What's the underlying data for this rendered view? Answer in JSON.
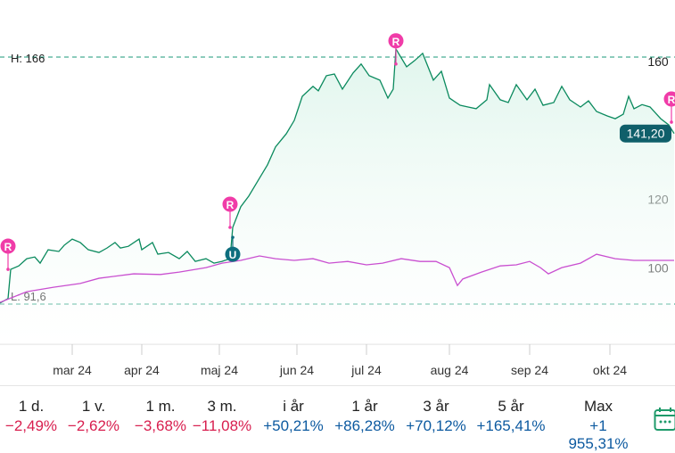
{
  "chart_data": {
    "type": "line",
    "ylim": [
      91.6,
      166
    ],
    "yticks": [
      100,
      120,
      160
    ],
    "high_label": "H: 166",
    "low_label": "L: 91,6",
    "high": 166,
    "low": 91.6,
    "last_value": 141.2,
    "last_label": "141,20",
    "xticks": [
      {
        "t": 27,
        "label": "mar 24"
      },
      {
        "t": 53,
        "label": "apr 24"
      },
      {
        "t": 82,
        "label": "maj 24"
      },
      {
        "t": 111,
        "label": "jun 24"
      },
      {
        "t": 137,
        "label": "jul 24"
      },
      {
        "t": 168,
        "label": "aug 24"
      },
      {
        "t": 198,
        "label": "sep 24"
      },
      {
        "t": 228,
        "label": "okt 24"
      }
    ],
    "series": [
      {
        "name": "price",
        "color": "#0b8a5e",
        "points": [
          [
            0,
            91.9
          ],
          [
            3,
            93.2
          ],
          [
            4,
            101.7
          ],
          [
            7,
            102.7
          ],
          [
            10,
            104.8
          ],
          [
            13,
            105.3
          ],
          [
            15,
            103.5
          ],
          [
            18,
            107.4
          ],
          [
            22,
            106.9
          ],
          [
            24,
            108.7
          ],
          [
            27,
            110.5
          ],
          [
            30,
            109.5
          ],
          [
            33,
            107.4
          ],
          [
            37,
            106.6
          ],
          [
            40,
            107.9
          ],
          [
            43,
            109.5
          ],
          [
            45,
            107.9
          ],
          [
            48,
            108.4
          ],
          [
            52,
            110.5
          ],
          [
            53,
            107.4
          ],
          [
            57,
            109.5
          ],
          [
            59,
            106.1
          ],
          [
            63,
            106.6
          ],
          [
            67,
            104.8
          ],
          [
            70,
            106.9
          ],
          [
            73,
            104.0
          ],
          [
            77,
            104.8
          ],
          [
            80,
            103.5
          ],
          [
            83,
            104.0
          ],
          [
            86,
            104.8
          ],
          [
            87,
            113.9
          ],
          [
            90,
            119.9
          ],
          [
            93,
            123.0
          ],
          [
            97,
            128.2
          ],
          [
            100,
            132.1
          ],
          [
            103,
            137.3
          ],
          [
            107,
            141.1
          ],
          [
            110,
            145.0
          ],
          [
            113,
            152.0
          ],
          [
            117,
            154.9
          ],
          [
            119,
            153.6
          ],
          [
            122,
            158.0
          ],
          [
            125,
            158.5
          ],
          [
            128,
            154.1
          ],
          [
            132,
            158.8
          ],
          [
            135,
            161.4
          ],
          [
            138,
            158.0
          ],
          [
            142,
            156.7
          ],
          [
            145,
            151.5
          ],
          [
            147,
            154.1
          ],
          [
            148,
            165.8
          ],
          [
            152,
            160.6
          ],
          [
            155,
            162.4
          ],
          [
            158,
            164.5
          ],
          [
            162,
            156.7
          ],
          [
            165,
            159.3
          ],
          [
            168,
            151.5
          ],
          [
            172,
            149.4
          ],
          [
            175,
            148.9
          ],
          [
            178,
            148.4
          ],
          [
            182,
            151.0
          ],
          [
            183,
            155.4
          ],
          [
            187,
            151.0
          ],
          [
            190,
            150.2
          ],
          [
            193,
            155.4
          ],
          [
            197,
            151.0
          ],
          [
            200,
            154.1
          ],
          [
            203,
            149.4
          ],
          [
            207,
            150.2
          ],
          [
            210,
            154.9
          ],
          [
            213,
            151.0
          ],
          [
            217,
            148.9
          ],
          [
            220,
            150.7
          ],
          [
            223,
            147.6
          ],
          [
            227,
            146.3
          ],
          [
            230,
            145.5
          ],
          [
            233,
            146.8
          ],
          [
            235,
            152.0
          ],
          [
            237,
            148.4
          ],
          [
            240,
            149.6
          ],
          [
            243,
            148.9
          ],
          [
            247,
            145.5
          ],
          [
            250,
            143.7
          ],
          [
            252,
            141.2
          ]
        ]
      },
      {
        "name": "index",
        "color": "#c94fd0",
        "points": [
          [
            0,
            92.1
          ],
          [
            10,
            95.2
          ],
          [
            20,
            96.5
          ],
          [
            30,
            97.6
          ],
          [
            37,
            99.1
          ],
          [
            50,
            100.4
          ],
          [
            60,
            100.2
          ],
          [
            67,
            100.9
          ],
          [
            77,
            102.2
          ],
          [
            83,
            103.5
          ],
          [
            90,
            104.3
          ],
          [
            97,
            105.6
          ],
          [
            103,
            104.8
          ],
          [
            110,
            104.3
          ],
          [
            117,
            104.8
          ],
          [
            123,
            103.5
          ],
          [
            130,
            104.0
          ],
          [
            137,
            103.0
          ],
          [
            143,
            103.5
          ],
          [
            150,
            104.8
          ],
          [
            157,
            104.0
          ],
          [
            163,
            104.0
          ],
          [
            168,
            102.2
          ],
          [
            171,
            97.0
          ],
          [
            173,
            98.9
          ],
          [
            180,
            100.9
          ],
          [
            187,
            102.7
          ],
          [
            193,
            103.0
          ],
          [
            198,
            104.0
          ],
          [
            202,
            102.2
          ],
          [
            205,
            100.4
          ],
          [
            210,
            102.2
          ],
          [
            217,
            103.5
          ],
          [
            223,
            106.1
          ],
          [
            230,
            104.8
          ],
          [
            237,
            104.3
          ],
          [
            243,
            104.3
          ],
          [
            252,
            104.3
          ]
        ]
      }
    ],
    "markers": [
      {
        "t": 3,
        "v": 101.7,
        "label": "R",
        "color": "#f03ca8"
      },
      {
        "t": 86,
        "v": 113.9,
        "label": "R",
        "color": "#f03ca8"
      },
      {
        "t": 87,
        "v": 111,
        "label": "U",
        "color": "#0e6e7e",
        "below": true
      },
      {
        "t": 148,
        "v": 161.4,
        "label": "R",
        "color": "#f03ca8"
      },
      {
        "t": 251,
        "v": 144.5,
        "label": "R",
        "color": "#f03ca8"
      }
    ]
  },
  "periods": [
    {
      "label": "1 d.",
      "value": "−2,49%",
      "dir": "neg"
    },
    {
      "label": "1 v.",
      "value": "−2,62%",
      "dir": "neg"
    },
    {
      "label": "1 m.",
      "value": "−3,68%",
      "dir": "neg"
    },
    {
      "label": "3 m.",
      "value": "−11,08%",
      "dir": "neg"
    },
    {
      "label": "i år",
      "value": "+50,21%",
      "dir": "pos"
    },
    {
      "label": "1 år",
      "value": "+86,28%",
      "dir": "pos"
    },
    {
      "label": "3 år",
      "value": "+70,12%",
      "dir": "pos"
    },
    {
      "label": "5 år",
      "value": "+165,41%",
      "dir": "pos"
    },
    {
      "label": "Max",
      "value": "+1 955,31%",
      "dir": "pos"
    }
  ],
  "calendar_icon": "calendar-icon"
}
